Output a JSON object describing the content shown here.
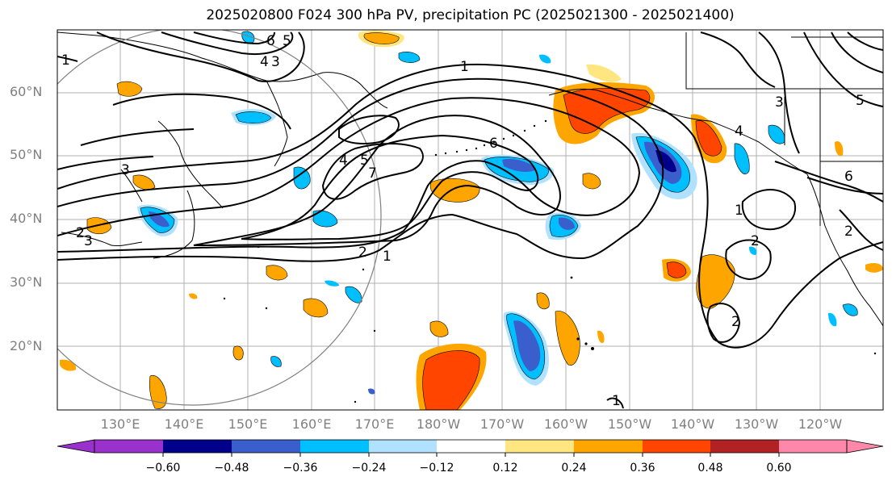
{
  "title": "2025020800 F024 300 hPa PV, precipitation PC (2025021300 - 2025021400)",
  "lat_labels": [
    "60°N",
    "50°N",
    "40°N",
    "30°N",
    "20°N"
  ],
  "lon_labels": [
    "130°E",
    "140°E",
    "150°E",
    "160°E",
    "170°E",
    "180°W",
    "170°W",
    "160°W",
    "150°W",
    "140°W",
    "130°W",
    "120°W"
  ],
  "colorbar": {
    "ticks": [
      "−0.60",
      "−0.48",
      "−0.36",
      "−0.24",
      "−0.12",
      "0.12",
      "0.24",
      "0.36",
      "0.48",
      "0.60"
    ],
    "colors": [
      "#9932cc",
      "#00008b",
      "#3a5fcd",
      "#00bfff",
      "#b0e2ff",
      "#ffffff",
      "#ffe680",
      "#ffa500",
      "#ff4500",
      "#b22222",
      "#ff88aa"
    ]
  },
  "contour_labels": [
    "1",
    "1",
    "1",
    "1",
    "1",
    "2",
    "2",
    "2",
    "2",
    "2",
    "3",
    "3",
    "3",
    "3",
    "4",
    "4",
    "4",
    "5",
    "5",
    "5",
    "6",
    "6",
    "6",
    "7"
  ]
}
